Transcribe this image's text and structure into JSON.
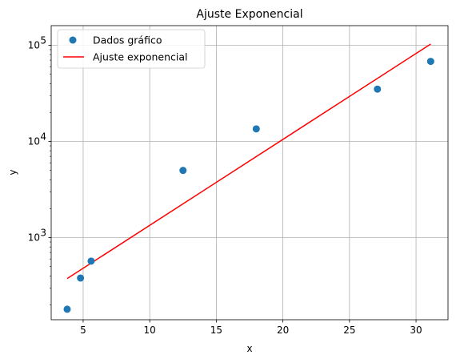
{
  "chart_data": {
    "type": "scatter",
    "title": "Ajuste Exponencial",
    "xlabel": "x",
    "ylabel": "y",
    "xlim": [
      2.6,
      32.4
    ],
    "ylim": [
      140,
      160000
    ],
    "yscale": "log",
    "grid": true,
    "legend_position": "top-left",
    "x_ticks": [
      5,
      10,
      15,
      20,
      25,
      30
    ],
    "y_ticks": [
      {
        "value": 1000,
        "base": "10",
        "exp": "3"
      },
      {
        "value": 10000,
        "base": "10",
        "exp": "4"
      },
      {
        "value": 100000,
        "base": "10",
        "exp": "5"
      }
    ],
    "series": [
      {
        "name": "Dados gráfico",
        "kind": "scatter",
        "color": "#1f77b4",
        "x": [
          3.8,
          4.8,
          5.6,
          12.5,
          18.0,
          27.1,
          31.1
        ],
        "y": [
          180,
          380,
          570,
          5000,
          13500,
          35000,
          68000
        ]
      },
      {
        "name": "Ajuste exponencial",
        "kind": "line",
        "color": "#ff0000",
        "x": [
          3.8,
          31.1
        ],
        "y": [
          375,
          103000
        ]
      }
    ]
  }
}
